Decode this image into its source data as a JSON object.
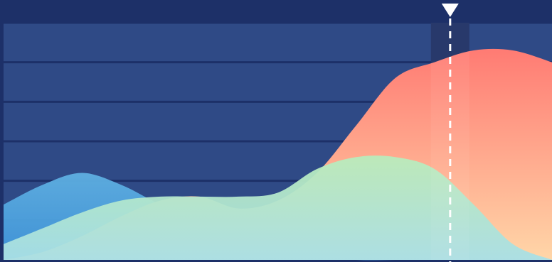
{
  "colors": {
    "background": "#1d3068",
    "plot_band": "#2f4a86",
    "highlight_band": "#1b2d62",
    "marker": "#ffffff",
    "series_blue_top": "#5fb0e2",
    "series_blue_bottom": "#3f95da",
    "series_orange_top": "#ff7b73",
    "series_orange_bottom": "#ffd6a8",
    "series_green_top": "#b9ecbb",
    "series_green_bottom": "#a8dfe6"
  },
  "chart_data": {
    "type": "area",
    "title": "",
    "xlabel": "",
    "ylabel": "",
    "legend": "none",
    "grid": true,
    "x_range": [
      0,
      14
    ],
    "ylim": [
      0,
      6
    ],
    "highlight_x": 11.4,
    "series": [
      {
        "key": "blue",
        "x": [
          0,
          1,
          2,
          3,
          4,
          5,
          6,
          7,
          8,
          9,
          10,
          11,
          12,
          13,
          14
        ],
        "values": [
          1.4,
          1.9,
          2.2,
          1.9,
          1.4,
          1.0,
          0.6,
          0.3,
          0.1,
          0.0,
          0.0,
          0.0,
          0.0,
          0.0,
          0.0
        ]
      },
      {
        "key": "orange",
        "x": [
          0,
          1,
          2,
          3,
          4,
          5,
          6,
          7,
          8,
          9,
          10,
          11,
          12,
          13,
          14
        ],
        "values": [
          0.0,
          0.2,
          0.6,
          1.1,
          1.5,
          1.6,
          1.3,
          1.5,
          2.2,
          3.4,
          4.6,
          5.0,
          5.3,
          5.3,
          5.0
        ]
      },
      {
        "key": "green",
        "x": [
          0,
          1,
          2,
          3,
          4,
          5,
          6,
          7,
          8,
          9,
          10,
          11,
          12,
          13,
          14
        ],
        "values": [
          0.4,
          0.8,
          1.2,
          1.5,
          1.6,
          1.6,
          1.6,
          1.7,
          2.3,
          2.6,
          2.6,
          2.3,
          1.4,
          0.4,
          0.0
        ]
      }
    ]
  }
}
